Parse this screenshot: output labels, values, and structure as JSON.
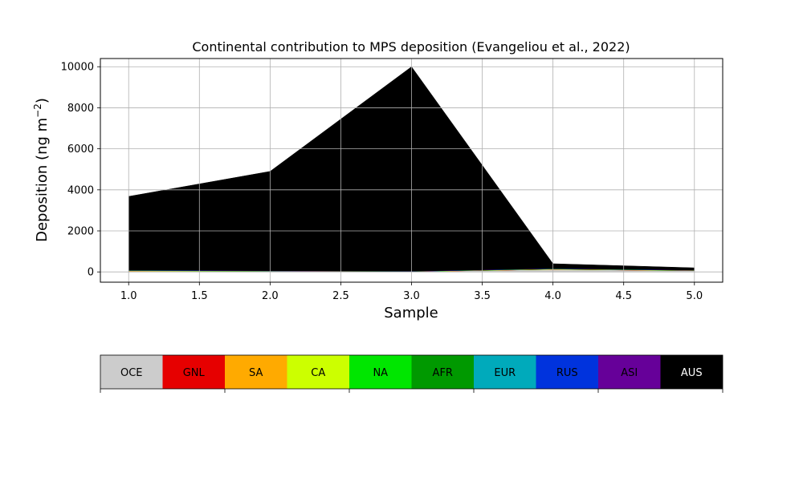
{
  "chart_data": {
    "type": "area",
    "stacked": true,
    "title": "Continental contribution to MPS deposition (Evangeliou et al., 2022)",
    "xlabel": "Sample",
    "ylabel_main": "Deposition (ng m",
    "ylabel_sup": "−2",
    "ylabel_close": ")",
    "xlim": [
      0.8,
      5.2
    ],
    "ylim": [
      -500,
      10400
    ],
    "grid": true,
    "x": [
      1,
      2,
      3,
      4,
      5
    ],
    "x_ticks": [
      1.0,
      1.5,
      2.0,
      2.5,
      3.0,
      3.5,
      4.0,
      4.5,
      5.0
    ],
    "x_tick_labels": [
      "1.0",
      "1.5",
      "2.0",
      "2.5",
      "3.0",
      "3.5",
      "4.0",
      "4.5",
      "5.0"
    ],
    "y_ticks": [
      0,
      2000,
      4000,
      6000,
      8000,
      10000
    ],
    "y_tick_labels": [
      "0",
      "2000",
      "4000",
      "6000",
      "8000",
      "10000"
    ],
    "series": [
      {
        "name": "OCE",
        "color": "#cccccc",
        "values": [
          40,
          30,
          15,
          120,
          60
        ]
      },
      {
        "name": "GNL",
        "color": "#e60000",
        "values": [
          3,
          2,
          1,
          3,
          2
        ]
      },
      {
        "name": "SA",
        "color": "#ffaa00",
        "values": [
          10,
          6,
          4,
          10,
          6
        ]
      },
      {
        "name": "CA",
        "color": "#ccff00",
        "values": [
          5,
          3,
          2,
          5,
          3
        ]
      },
      {
        "name": "NA",
        "color": "#00e600",
        "values": [
          5,
          3,
          2,
          5,
          3
        ]
      },
      {
        "name": "AFR",
        "color": "#009900",
        "values": [
          10,
          6,
          4,
          10,
          6
        ]
      },
      {
        "name": "EUR",
        "color": "#00aabb",
        "values": [
          5,
          3,
          2,
          5,
          3
        ]
      },
      {
        "name": "RUS",
        "color": "#0033dd",
        "values": [
          2,
          2,
          1,
          2,
          2
        ]
      },
      {
        "name": "ASI",
        "color": "#660099",
        "values": [
          10,
          5,
          4,
          10,
          5
        ]
      },
      {
        "name": "AUS",
        "color": "#000000",
        "values": [
          3590,
          4840,
          9965,
          230,
          110
        ]
      }
    ]
  },
  "colorbar": {
    "labels": [
      "OCE",
      "GNL",
      "SA",
      "CA",
      "NA",
      "AFR",
      "EUR",
      "RUS",
      "ASI",
      "AUS"
    ],
    "colors": [
      "#cccccc",
      "#e60000",
      "#ffaa00",
      "#ccff00",
      "#00e600",
      "#009900",
      "#00aabb",
      "#0033dd",
      "#660099",
      "#000000"
    ],
    "label_colors": [
      "#000000",
      "#000000",
      "#000000",
      "#000000",
      "#000000",
      "#000000",
      "#000000",
      "#000000",
      "#000000",
      "#ffffff"
    ]
  }
}
